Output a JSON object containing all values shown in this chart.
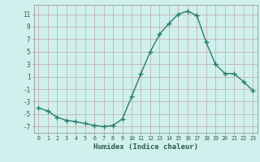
{
  "x": [
    0,
    1,
    2,
    3,
    4,
    5,
    6,
    7,
    8,
    9,
    10,
    11,
    12,
    13,
    14,
    15,
    16,
    17,
    18,
    19,
    20,
    21,
    22,
    23
  ],
  "y": [
    -4.0,
    -4.5,
    -5.5,
    -6.0,
    -6.2,
    -6.5,
    -6.8,
    -7.0,
    -6.8,
    -5.8,
    -2.2,
    1.5,
    5.0,
    7.8,
    9.5,
    11.0,
    11.5,
    10.8,
    6.5,
    3.0,
    1.5,
    1.5,
    0.2,
    -1.2
  ],
  "line_color": "#2a7d6e",
  "marker": "+",
  "markersize": 4,
  "linewidth": 1.0,
  "xlabel": "Humidex (Indice chaleur)",
  "background_color": "#cff0ec",
  "grid_color": "#c0a8a8",
  "yticks": [
    -7,
    -5,
    -3,
    -1,
    1,
    3,
    5,
    7,
    9,
    11
  ],
  "ytick_labels": [
    "-7",
    "-5",
    "-3",
    "-1",
    "1",
    "3",
    "5",
    "7",
    "9",
    "11"
  ],
  "xlim": [
    -0.5,
    23.5
  ],
  "ylim": [
    -8.0,
    12.5
  ],
  "xtick_labels": [
    "0",
    "1",
    "2",
    "3",
    "4",
    "5",
    "6",
    "7",
    "8",
    "9",
    "10",
    "11",
    "12",
    "13",
    "14",
    "15",
    "16",
    "17",
    "18",
    "19",
    "20",
    "21",
    "22",
    "23"
  ]
}
